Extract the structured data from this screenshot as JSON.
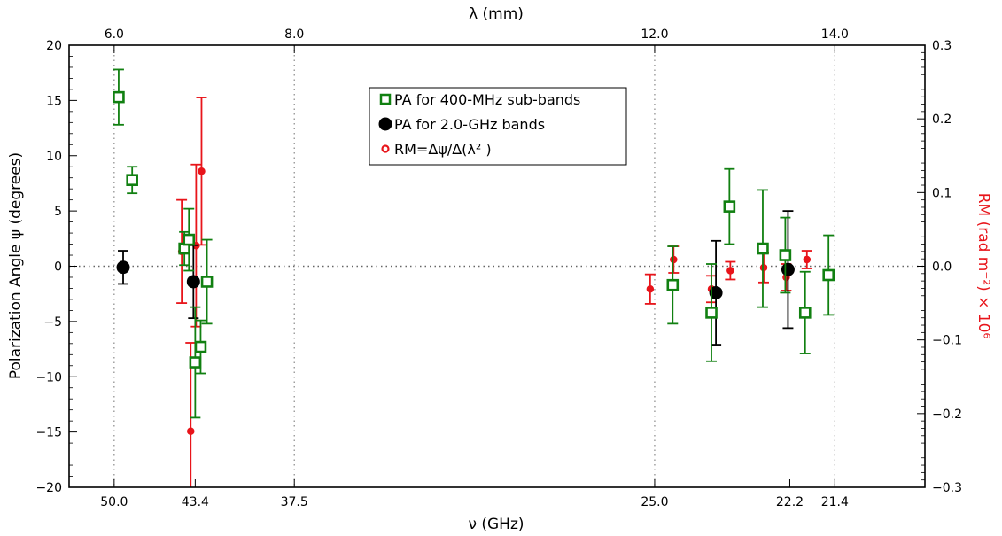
{
  "chart_data": {
    "type": "scatter",
    "xlabel": "ν (GHz)",
    "ylabel": "Polarization Angle ψ (degrees)",
    "top_xlabel": "λ (mm)",
    "right_ylabel": "RM (rad m⁻²) × 10⁶",
    "xlim_lambda_mm": [
      5.5,
      15.0
    ],
    "ylim": [
      -20,
      20
    ],
    "y2lim": [
      -0.3,
      0.3
    ],
    "grid": "dotted verticals at labeled λ ticks; dotted horizontal at zero",
    "legend_position": "upper-center",
    "bottom_ticks": [
      {
        "label": "50.0",
        "lambda_mm": 6.0
      },
      {
        "label": "43.4",
        "lambda_mm": 6.9
      },
      {
        "label": "37.5",
        "lambda_mm": 8.0
      },
      {
        "label": "25.0",
        "lambda_mm": 12.0
      },
      {
        "label": "22.2",
        "lambda_mm": 13.5
      },
      {
        "label": "21.4",
        "lambda_mm": 14.0
      }
    ],
    "top_ticks": [
      {
        "label": "6.0",
        "lambda_mm": 6.0
      },
      {
        "label": "8.0",
        "lambda_mm": 8.0
      },
      {
        "label": "12.0",
        "lambda_mm": 12.0
      },
      {
        "label": "14.0",
        "lambda_mm": 14.0
      }
    ],
    "left_ticks": [
      20,
      15,
      10,
      5,
      0,
      -5,
      -10,
      -15,
      -20
    ],
    "left_tick_labels": [
      "20",
      "15",
      "10",
      "5",
      "0",
      "−5",
      "−10",
      "−15",
      "−20"
    ],
    "right_ticks": [
      0.3,
      0.2,
      0.1,
      0.0,
      -0.1,
      -0.2,
      -0.3
    ],
    "right_tick_labels": [
      "0.3",
      "0.2",
      "0.1",
      "0.0",
      "−0.1",
      "−0.2",
      "−0.3"
    ],
    "series": [
      {
        "name": "PA for 400-MHz sub-bands",
        "marker": "open-square",
        "color": "#118011",
        "axis": "left",
        "points": [
          {
            "lambda_mm": 6.05,
            "y": 15.3,
            "err": 2.5
          },
          {
            "lambda_mm": 6.2,
            "y": 7.8,
            "err": 1.2
          },
          {
            "lambda_mm": 6.78,
            "y": 1.6,
            "err": 1.5
          },
          {
            "lambda_mm": 6.83,
            "y": 2.4,
            "err": 2.8
          },
          {
            "lambda_mm": 6.9,
            "y": -8.7,
            "err": 5.0
          },
          {
            "lambda_mm": 6.96,
            "y": -7.3,
            "err": 2.4
          },
          {
            "lambda_mm": 7.03,
            "y": -1.4,
            "err": 3.8
          },
          {
            "lambda_mm": 12.2,
            "y": -1.7,
            "err": 3.5
          },
          {
            "lambda_mm": 12.63,
            "y": -4.2,
            "err": 4.4
          },
          {
            "lambda_mm": 12.83,
            "y": 5.4,
            "err": 3.4
          },
          {
            "lambda_mm": 13.2,
            "y": 1.6,
            "err": 5.3
          },
          {
            "lambda_mm": 13.45,
            "y": 1.0,
            "err": 3.4
          },
          {
            "lambda_mm": 13.67,
            "y": -4.2,
            "err": 3.7
          },
          {
            "lambda_mm": 13.93,
            "y": -0.8,
            "err": 3.6
          }
        ]
      },
      {
        "name": "PA for 2.0-GHz bands",
        "marker": "filled-circle",
        "color": "#000000",
        "axis": "left",
        "points": [
          {
            "lambda_mm": 6.1,
            "y": -0.1,
            "err": 1.5
          },
          {
            "lambda_mm": 6.88,
            "y": -1.4,
            "err": 3.3
          },
          {
            "lambda_mm": 12.68,
            "y": -2.4,
            "err": 4.7
          },
          {
            "lambda_mm": 13.48,
            "y": -0.3,
            "err": 5.3
          }
        ]
      },
      {
        "name": "RM=Δψ/Δ(λ² )",
        "marker": "open-circle",
        "color": "#e8141a",
        "axis": "right",
        "points": [
          {
            "lambda_mm": 6.75,
            "y": 0.02,
            "err": 0.07
          },
          {
            "lambda_mm": 6.85,
            "y": -0.224,
            "err": 0.12
          },
          {
            "lambda_mm": 6.91,
            "y": 0.028,
            "err": 0.11
          },
          {
            "lambda_mm": 6.97,
            "y": 0.129,
            "err": 0.1
          },
          {
            "lambda_mm": 11.95,
            "y": -0.031,
            "err": 0.02
          },
          {
            "lambda_mm": 12.21,
            "y": 0.009,
            "err": 0.018
          },
          {
            "lambda_mm": 12.63,
            "y": -0.031,
            "err": 0.018
          },
          {
            "lambda_mm": 12.84,
            "y": -0.006,
            "err": 0.012
          },
          {
            "lambda_mm": 13.21,
            "y": -0.002,
            "err": 0.02
          },
          {
            "lambda_mm": 13.46,
            "y": -0.015,
            "err": 0.018
          },
          {
            "lambda_mm": 13.69,
            "y": 0.009,
            "err": 0.012
          }
        ]
      }
    ]
  }
}
